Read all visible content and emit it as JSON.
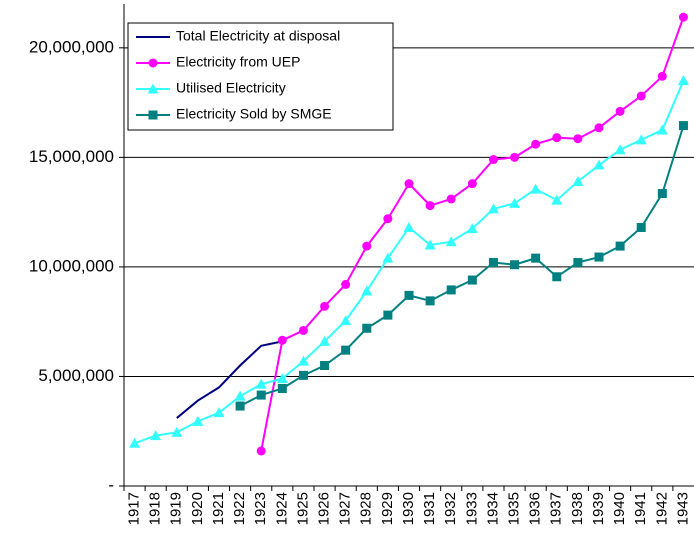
{
  "chart_data": {
    "type": "line",
    "categories": [
      "1917",
      "1918",
      "1919",
      "1920",
      "1921",
      "1922",
      "1923",
      "1924",
      "1925",
      "1926",
      "1927",
      "1928",
      "1929",
      "1930",
      "1931",
      "1932",
      "1933",
      "1934",
      "1935",
      "1936",
      "1937",
      "1938",
      "1939",
      "1940",
      "1941",
      "1942",
      "1943"
    ],
    "series": [
      {
        "name": "Total Electricity at disposal",
        "color": "#000080",
        "marker": "none",
        "values": [
          null,
          null,
          3100000,
          3900000,
          4500000,
          5500000,
          6400000,
          6600000,
          null,
          null,
          null,
          null,
          null,
          null,
          null,
          null,
          null,
          null,
          null,
          null,
          null,
          null,
          null,
          null,
          null,
          null,
          null
        ]
      },
      {
        "name": "Electricity from UEP",
        "color": "#ff00ff",
        "marker": "circle",
        "values": [
          null,
          null,
          null,
          null,
          null,
          null,
          1600000,
          6650000,
          7100000,
          8200000,
          9200000,
          10950000,
          12200000,
          13800000,
          12800000,
          13100000,
          13800000,
          14900000,
          15000000,
          15600000,
          15900000,
          15850000,
          16350000,
          17100000,
          17800000,
          18700000,
          21400000
        ]
      },
      {
        "name": "Utilised Electricity",
        "color": "#33ffff",
        "marker": "triangle",
        "values": [
          1950000,
          2300000,
          2450000,
          2950000,
          3350000,
          4100000,
          4650000,
          4900000,
          5700000,
          6600000,
          7550000,
          8900000,
          10400000,
          11800000,
          11000000,
          11150000,
          11750000,
          12650000,
          12900000,
          13550000,
          13050000,
          13900000,
          14650000,
          15350000,
          15800000,
          16250000,
          18500000
        ]
      },
      {
        "name": "Electricity Sold by SMGE",
        "color": "#008080",
        "marker": "square",
        "values": [
          null,
          null,
          null,
          null,
          null,
          3650000,
          4150000,
          4450000,
          5050000,
          5500000,
          6200000,
          7200000,
          7800000,
          8700000,
          8450000,
          8950000,
          9400000,
          10200000,
          10100000,
          10400000,
          9550000,
          10200000,
          10450000,
          10950000,
          11800000,
          13350000,
          16450000
        ]
      }
    ],
    "ylim": [
      0,
      22000000
    ],
    "yticks": [
      {
        "value": 0,
        "label": "-"
      },
      {
        "value": 5000000,
        "label": "5,000,000"
      },
      {
        "value": 10000000,
        "label": "10,000,000"
      },
      {
        "value": 15000000,
        "label": "15,000,000"
      },
      {
        "value": 20000000,
        "label": "20,000,000"
      }
    ],
    "grid": true,
    "legend": "upper left"
  }
}
